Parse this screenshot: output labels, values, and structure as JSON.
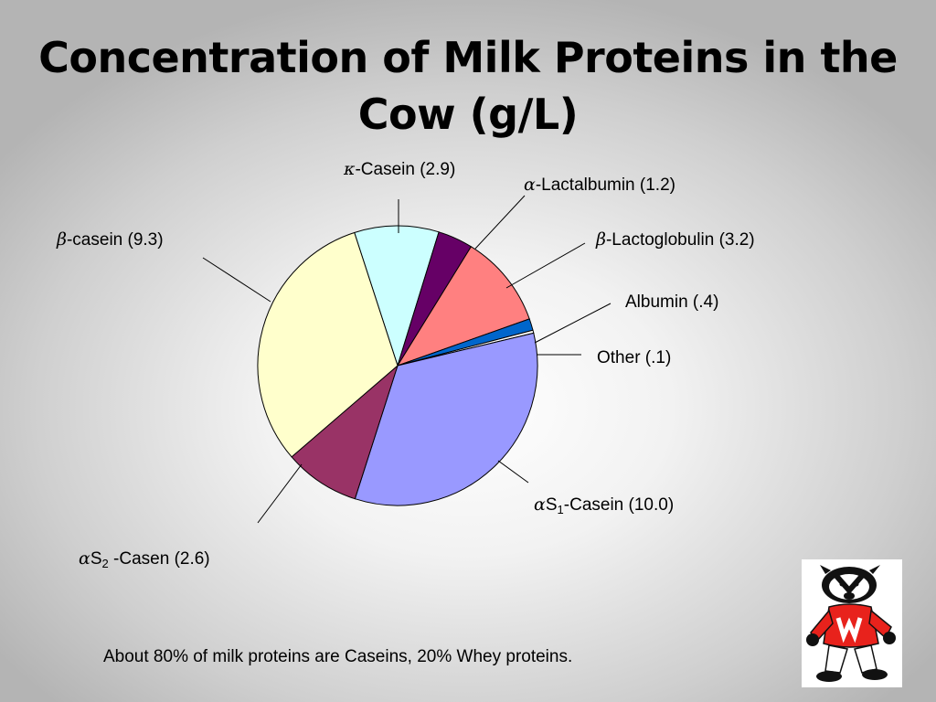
{
  "slide": {
    "title_line1": "Concentration of Milk Proteins in the",
    "title_line2": "Cow (g/L)",
    "footnote": "About 80% of milk proteins are Caseins, 20% Whey proteins."
  },
  "chart_data": {
    "type": "pie",
    "title": "Concentration of Milk Proteins in the Cow (g/L)",
    "slices": [
      {
        "name": "κ-Casein",
        "value": 2.9,
        "label": "κ-Casein (2.9)",
        "color": "#ccffff"
      },
      {
        "name": "α-Lactalbumin",
        "value": 1.2,
        "label": "α-Lactalbumin (1.2)",
        "color": "#660066"
      },
      {
        "name": "β-Lactoglobulin",
        "value": 3.2,
        "label": "β-Lactoglobulin (3.2)",
        "color": "#ff8080"
      },
      {
        "name": "Albumin",
        "value": 0.4,
        "label": "Albumin (.4)",
        "color": "#0066cc"
      },
      {
        "name": "Other",
        "value": 0.1,
        "label": "Other (.1)",
        "color": "#ffffff"
      },
      {
        "name": "αS1-Casein",
        "value": 10.0,
        "label": "αS1-Casein (10.0)",
        "color": "#9999ff"
      },
      {
        "name": "αS2-Casen",
        "value": 2.6,
        "label": "αS2 -Casen (2.6)",
        "color": "#993366"
      },
      {
        "name": "β-casein",
        "value": 9.3,
        "label": "β-casein (9.3)",
        "color": "#ffffcc"
      }
    ],
    "label_parts": {
      "kappa": {
        "sym": "κ",
        "rest": "-Casein (2.9)"
      },
      "alpha_lact": {
        "sym": "α",
        "rest": "-Lactalbumin (1.2)"
      },
      "beta_lacto": {
        "sym": "β",
        "rest": "-Lactoglobulin (3.2)"
      },
      "albumin": {
        "text": "Albumin (.4)"
      },
      "other": {
        "text": "Other (.1)"
      },
      "as1": {
        "sym": "α",
        "s": "S",
        "sub": "1",
        "rest": "-Casein (10.0)"
      },
      "as2": {
        "sym": "α",
        "s": "S",
        "sub": "2",
        "rest": " -Casen (2.6)"
      },
      "beta_casein": {
        "sym": "β",
        "rest": "-casein (9.3)"
      }
    }
  },
  "mascot": {
    "icon": "badger-mascot-icon",
    "colors": {
      "sweater": "#e8221c",
      "fur": "#111111"
    }
  }
}
